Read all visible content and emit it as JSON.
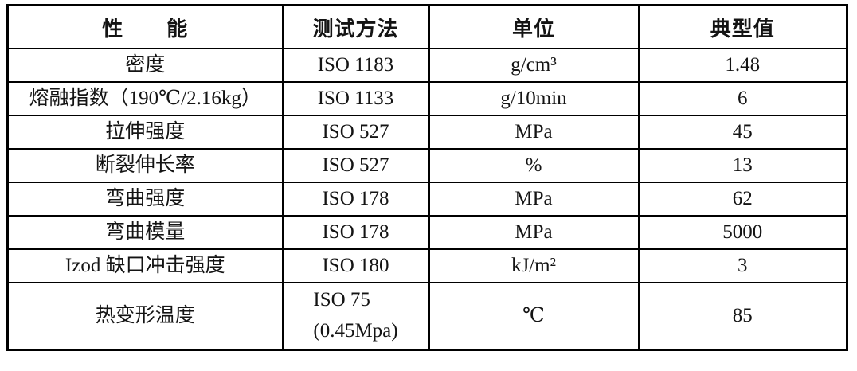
{
  "table": {
    "title": "material-properties-table",
    "headers": [
      {
        "label": "性　　能"
      },
      {
        "label": "测试方法"
      },
      {
        "label": "单位"
      },
      {
        "label": "典型值"
      }
    ],
    "rows": [
      {
        "property": "密度",
        "method": "ISO 1183",
        "unit": "g/cm³",
        "value": "1.48"
      },
      {
        "property": "熔融指数（190℃/2.16kg）",
        "method": "ISO 1133",
        "unit": "g/10min",
        "value": "6"
      },
      {
        "property": "拉伸强度",
        "method": "ISO 527",
        "unit": "MPa",
        "value": "45"
      },
      {
        "property": "断裂伸长率",
        "method": "ISO 527",
        "unit": "%",
        "value": "13"
      },
      {
        "property": "弯曲强度",
        "method": "ISO 178",
        "unit": "MPa",
        "value": "62"
      },
      {
        "property": "弯曲模量",
        "method": "ISO 178",
        "unit": "MPa",
        "value": "5000"
      },
      {
        "property": "Izod 缺口冲击强度",
        "method": "ISO 180",
        "unit": "kJ/m²",
        "value": "3"
      },
      {
        "property": "热变形温度",
        "method_lines": [
          "ISO 75",
          "(0.45Mpa)"
        ],
        "unit": "℃",
        "value": "85"
      }
    ]
  },
  "colors": {
    "border": "#000000",
    "text": "#141414",
    "background": "#ffffff"
  }
}
